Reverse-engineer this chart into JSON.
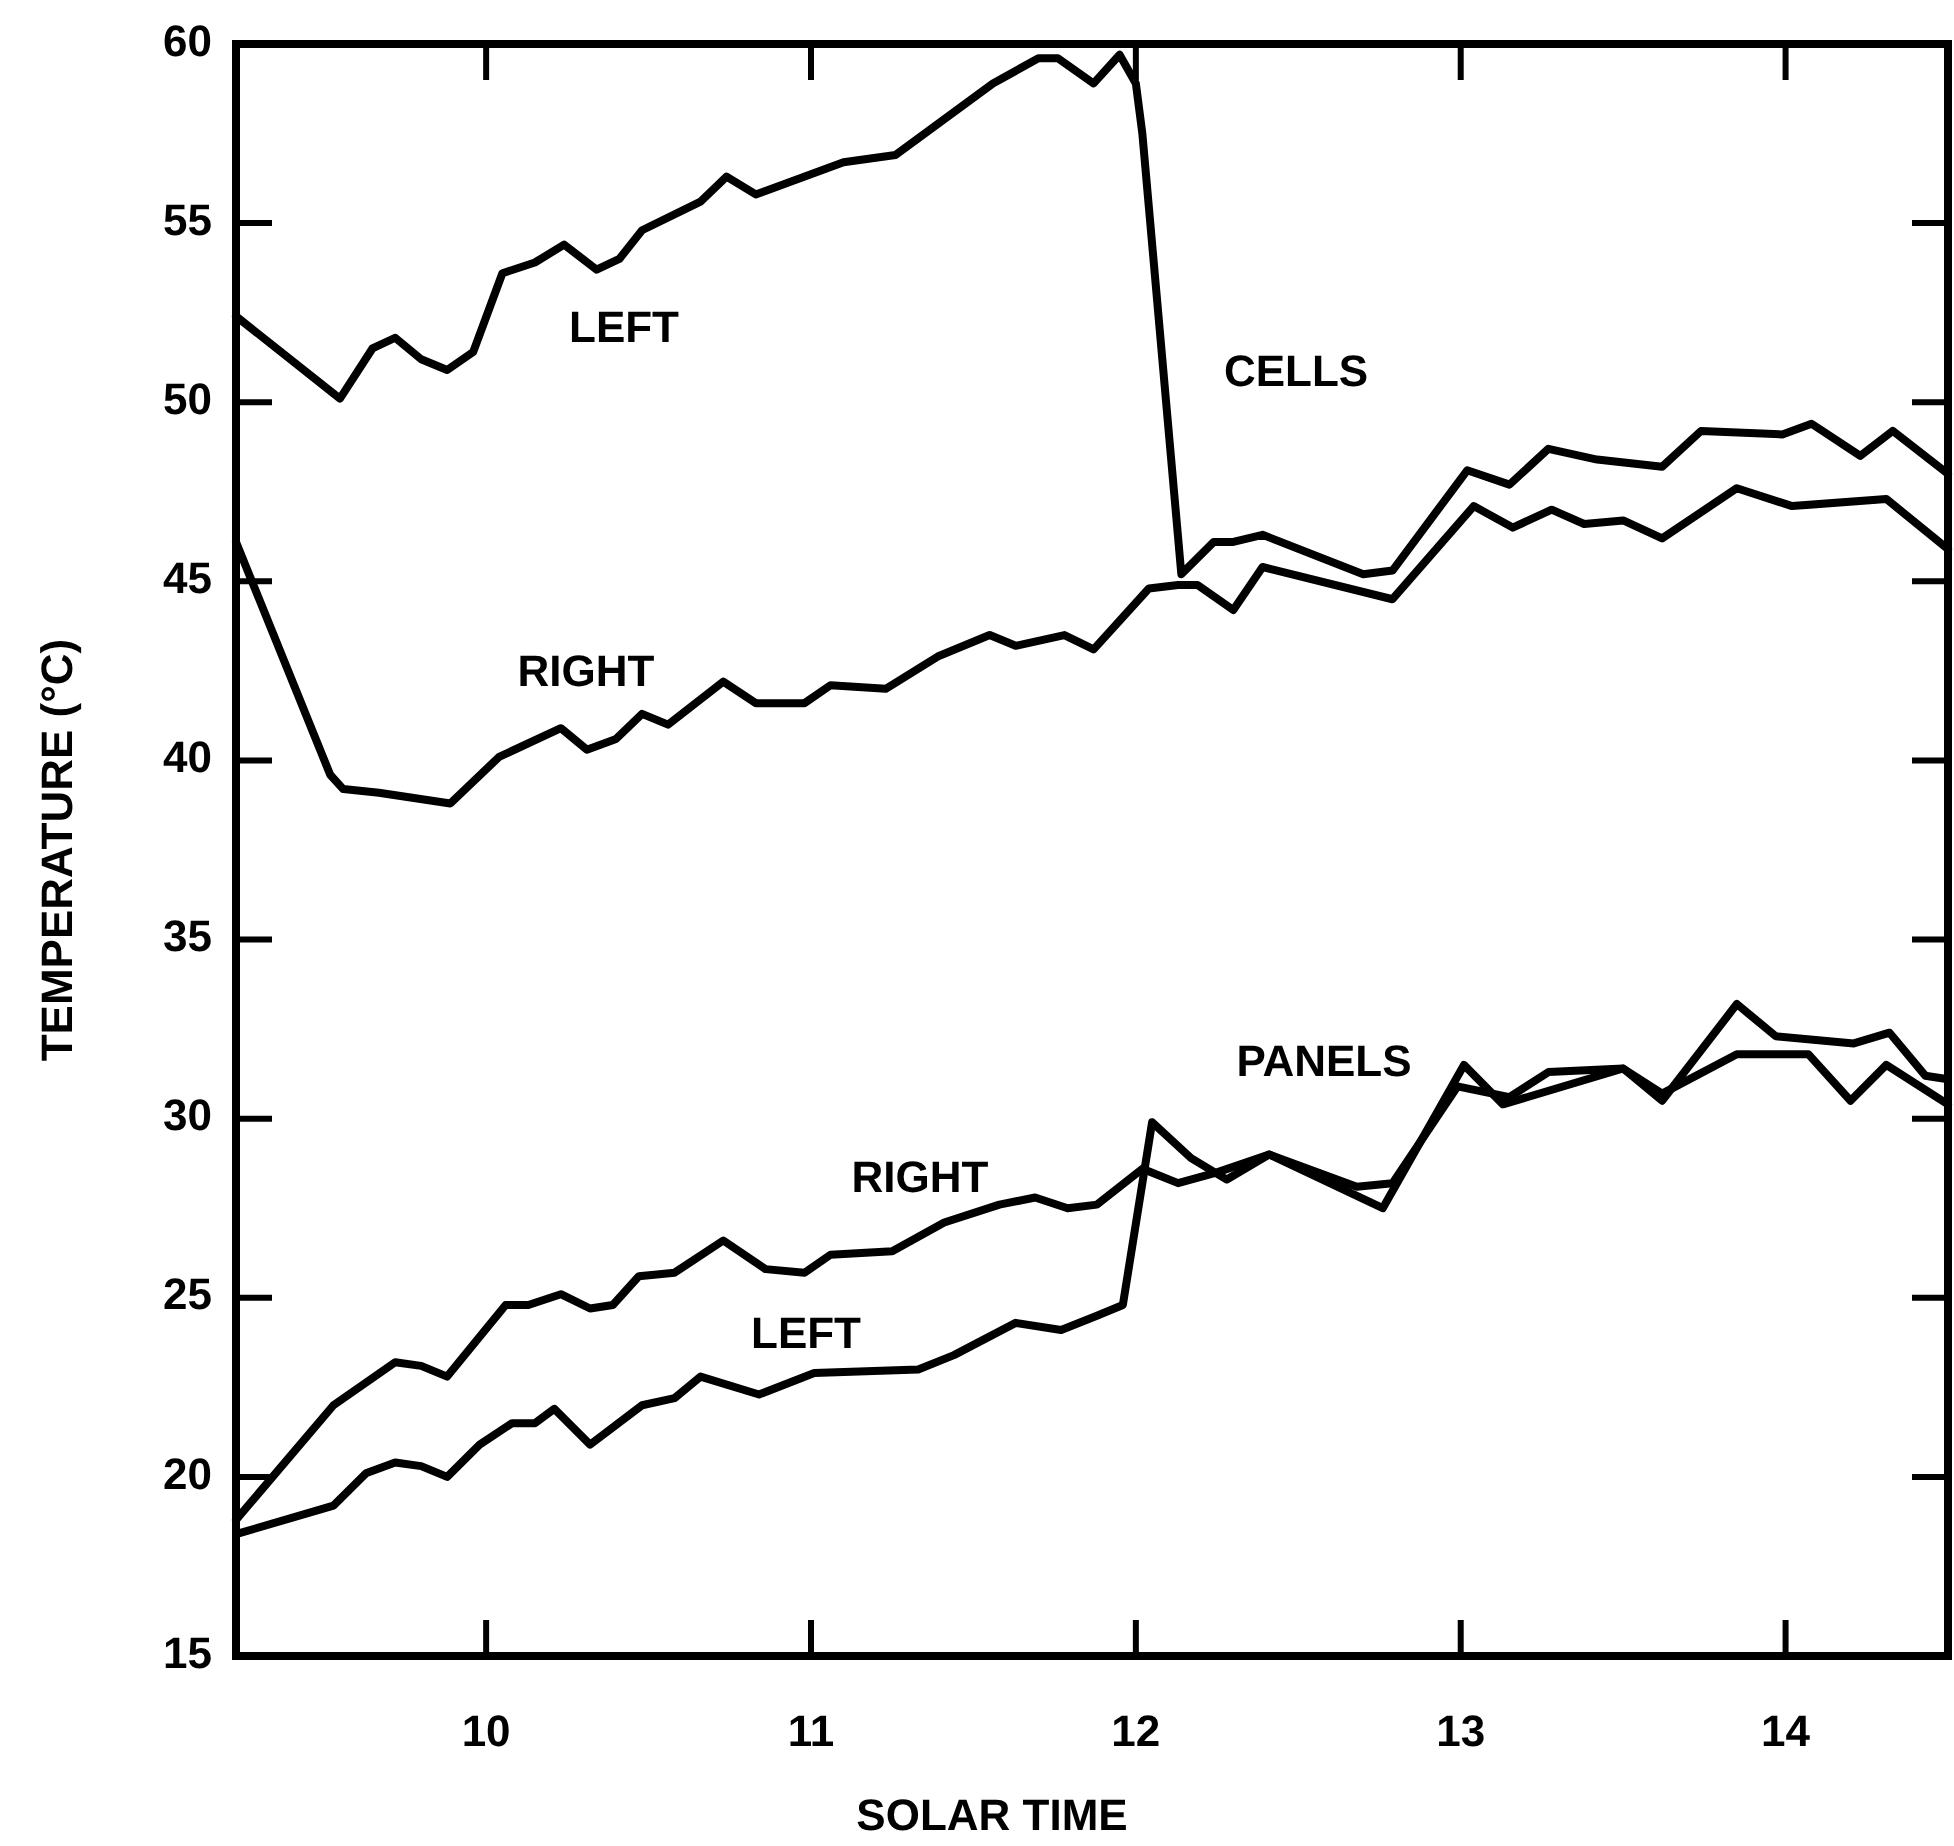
{
  "chart_data": {
    "type": "line",
    "xlabel": "SOLAR TIME",
    "ylabel": "TEMPERATURE (°C)",
    "xlim": [
      9.23,
      14.5
    ],
    "xticks": [
      10,
      11,
      12,
      13,
      14
    ],
    "ylim": [
      15,
      60
    ],
    "yticks": [
      15,
      20,
      25,
      30,
      35,
      40,
      45,
      50,
      55,
      60
    ],
    "series": [
      {
        "name": "LEFT",
        "color": "#000000",
        "x": [
          9.23,
          9.55,
          9.65,
          9.72,
          9.8,
          9.88,
          9.96,
          10.05,
          10.15,
          10.24,
          10.34,
          10.41,
          10.48,
          10.66,
          10.74,
          10.83,
          11.1,
          11.26,
          11.41,
          11.56,
          11.7,
          11.76,
          11.87,
          11.95,
          12.0,
          12.02,
          12.14,
          12.24,
          12.3,
          12.39,
          12.7,
          12.79,
          13.02,
          13.15,
          13.27,
          13.42,
          13.62,
          13.74,
          13.99,
          14.08,
          14.23,
          14.33,
          14.5
        ],
        "values": [
          52.4,
          50.1,
          51.5,
          51.8,
          51.2,
          50.9,
          51.4,
          53.6,
          53.9,
          54.4,
          53.7,
          54.0,
          54.8,
          55.6,
          56.3,
          55.8,
          56.7,
          56.9,
          57.9,
          58.9,
          59.6,
          59.6,
          58.9,
          59.7,
          58.9,
          57.5,
          45.2,
          46.1,
          46.1,
          46.3,
          45.2,
          45.3,
          48.1,
          47.7,
          48.7,
          48.4,
          48.2,
          49.2,
          49.1,
          49.4,
          48.5,
          49.2,
          48.0
        ]
      },
      {
        "name": "RIGHT",
        "color": "#000000",
        "x": [
          9.23,
          9.52,
          9.56,
          9.67,
          9.89,
          10.04,
          10.23,
          10.31,
          10.4,
          10.48,
          10.56,
          10.73,
          10.83,
          10.98,
          11.06,
          11.23,
          11.39,
          11.55,
          11.63,
          11.78,
          11.87,
          12.04,
          12.13,
          12.19,
          12.3,
          12.39,
          12.79,
          13.04,
          13.16,
          13.28,
          13.38,
          13.5,
          13.62,
          13.85,
          14.02,
          14.31,
          14.5
        ],
        "values": [
          46.1,
          39.6,
          39.2,
          39.1,
          38.8,
          40.1,
          40.9,
          40.3,
          40.6,
          41.3,
          41.0,
          42.2,
          41.6,
          41.6,
          42.1,
          42.0,
          42.9,
          43.5,
          43.2,
          43.5,
          43.1,
          44.8,
          44.9,
          44.9,
          44.2,
          45.4,
          44.5,
          47.1,
          46.5,
          47.0,
          46.6,
          46.7,
          46.2,
          47.6,
          47.1,
          47.3,
          45.9
        ]
      },
      {
        "name": "RIGHT",
        "color": "#000000",
        "x": [
          9.23,
          9.53,
          9.72,
          9.8,
          9.88,
          10.06,
          10.13,
          10.23,
          10.32,
          10.39,
          10.47,
          10.58,
          10.73,
          10.86,
          10.98,
          11.06,
          11.25,
          11.41,
          11.58,
          11.69,
          11.79,
          11.88,
          12.02,
          12.13,
          12.25,
          12.41,
          12.68,
          12.79,
          12.99,
          13.15,
          13.27,
          13.5,
          13.62,
          13.85,
          14.07,
          14.2,
          14.31,
          14.5
        ],
        "values": [
          18.8,
          22.0,
          23.2,
          23.1,
          22.8,
          24.8,
          24.8,
          25.1,
          24.7,
          24.8,
          25.6,
          25.7,
          26.6,
          25.8,
          25.7,
          26.2,
          26.3,
          27.1,
          27.6,
          27.8,
          27.5,
          27.6,
          28.6,
          28.2,
          28.5,
          29.0,
          28.1,
          28.2,
          30.9,
          30.6,
          31.3,
          31.4,
          30.7,
          31.8,
          31.8,
          30.5,
          31.5,
          30.4
        ]
      },
      {
        "name": "LEFT",
        "color": "#000000",
        "x": [
          9.23,
          9.53,
          9.63,
          9.72,
          9.8,
          9.88,
          9.98,
          10.08,
          10.15,
          10.21,
          10.32,
          10.48,
          10.58,
          10.66,
          10.84,
          11.01,
          11.33,
          11.44,
          11.63,
          11.77,
          11.88,
          11.96,
          12.05,
          12.17,
          12.28,
          12.41,
          12.76,
          13.01,
          13.13,
          13.5,
          13.62,
          13.85,
          13.97,
          14.21,
          14.32,
          14.43,
          14.5
        ],
        "values": [
          18.4,
          19.2,
          20.1,
          20.4,
          20.3,
          20.0,
          20.9,
          21.5,
          21.5,
          21.9,
          20.9,
          22.0,
          22.2,
          22.8,
          22.3,
          22.9,
          23.0,
          23.4,
          24.3,
          24.1,
          24.5,
          24.8,
          29.9,
          28.9,
          28.3,
          29.0,
          27.5,
          31.5,
          30.4,
          31.4,
          30.5,
          33.2,
          32.3,
          32.1,
          32.4,
          31.2,
          31.1
        ]
      }
    ],
    "annotations": [
      "CELLS",
      "PANELS"
    ]
  }
}
